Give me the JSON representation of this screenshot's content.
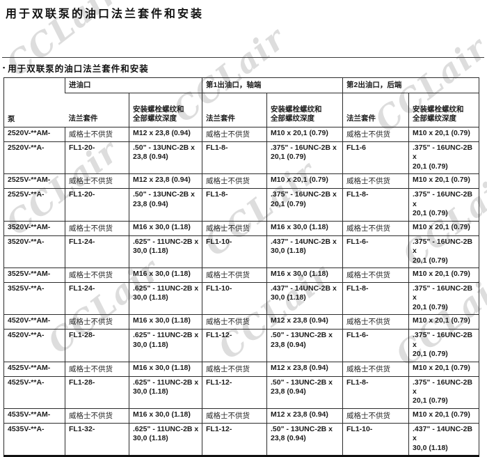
{
  "page": {
    "title": "用于双联泵的油口法兰套件和安装",
    "section_title": "用于双联泵的油口法兰套件和安装",
    "bullet": "▪",
    "watermark_text": "CCLair"
  },
  "table": {
    "pump_column_header": "泵",
    "group_headers": [
      "进油口",
      "第1出油口，轴端",
      "第2出油口，后端"
    ],
    "sub_headers": {
      "flange_kit": "法兰套件",
      "bolt_thread": "安装螺栓螺纹和\n全部螺纹深度"
    },
    "not_supplied_text": "威格士不供货",
    "rows": [
      {
        "pump": "2520V-**AM-",
        "cells": [
          "威格士不供货",
          "M12 x 23,8 (0.94)",
          "威格士不供货",
          "M10 x 20,1 (0.79)",
          "威格士不供货",
          "M10 x 20,1 (0.79)"
        ]
      },
      {
        "pump": "2520V-**A-",
        "cells": [
          "FL1-20-",
          ".50\" - 13UNC-2B x\n23,8 (0.94)",
          "FL1-8-",
          ".375\" - 16UNC-2B x\n20,1 (0.79)",
          "FL1-6",
          ".375\" - 16UNC-2B x\n20,1 (0.79)"
        ]
      },
      {
        "pump": "2525V-**AM-",
        "cells": [
          "威格士不供货",
          "M12 x 23,8 (0.94)",
          "威格士不供货",
          "M10 x 20,1 (0.79)",
          "威格士不供货",
          "M10 x 20,1 (0.79)"
        ]
      },
      {
        "pump": "2525V-**A-",
        "cells": [
          "FL1-20-",
          ".50\" - 13UNC-2B x\n23,8 (0.94)",
          "FL1-8-",
          ".375\" - 16UNC-2B x\n20,1 (0.79)",
          "FL1-8-",
          ".375\" - 16UNC-2B x\n20,1 (0.79)"
        ]
      },
      {
        "pump": "3520V-**AM-",
        "cells": [
          "威格士不供货",
          "M16 x 30,0 (1.18)",
          "威格士不供货",
          "M16 x 30,0 (1.18)",
          "威格士不供货",
          "M10 x 20,1 (0.79)"
        ]
      },
      {
        "pump": "3520V-**A-",
        "cells": [
          "FL1-24-",
          ".625\" - 11UNC-2B x\n30,0 (1.18)",
          "FL1-10-",
          ".437\" - 14UNC-2B x\n30,0 (1.18)",
          "FL1-6-",
          ".375\" - 16UNC-2B x\n20,1 (0.79)"
        ]
      },
      {
        "pump": "3525V-**AM-",
        "cells": [
          "威格士不供货",
          "M16 x 30,0 (1.18)",
          "威格士不供货",
          "M16 x 30,0 (1.18)",
          "威格士不供货",
          "M10 x 20,1 (0.79)"
        ]
      },
      {
        "pump": "3525V-**A-",
        "cells": [
          "FL1-24-",
          ".625\" - 11UNC-2B x\n30,0 (1.18)",
          "FL1-10-",
          ".437\" - 14UNC-2B x\n30,0 (1.18)",
          "FL1-8-",
          ".375\" - 16UNC-2B x\n20,1 (0.79)"
        ]
      },
      {
        "pump": "4520V-**AM-",
        "cells": [
          "威格士不供货",
          "M16 x 30,0 (1.18)",
          "威格士不供货",
          "M12 x 23,8 (0.94)",
          "威格士不供货",
          "M10 x 20,1 (0.79)"
        ]
      },
      {
        "pump": "4520V-**A-",
        "cells": [
          "FL1-28-",
          ".625\" - 11UNC-2B x\n30,0 (1.18)",
          "FL1-12-",
          ".50\" - 13UNC-2B x\n23,8 (0.94)",
          "FL1-6-",
          ".375\" - 16UNC-2B x\n20,1 (0.79)"
        ]
      },
      {
        "pump": "4525V-**AM-",
        "cells": [
          "威格士不供货",
          "M16 x 30,0 (1.18)",
          "威格士不供货",
          "M12 x 23,8 (0.94)",
          "威格士不供货",
          "M10 x 20,1 (0.79)"
        ]
      },
      {
        "pump": "4525V-**A-",
        "cells": [
          "FL1-28-",
          ".625\" - 11UNC-2B x\n30,0 (1.18)",
          "FL1-12-",
          ".50\" - 13UNC-2B x\n23,8 (0.94)",
          "FL1-8-",
          ".375\" - 16UNC-2B x\n20,1 (0.79)"
        ]
      },
      {
        "pump": "4535V-**AM-",
        "cells": [
          "威格士不供货",
          "M16 x 30,0 (1.18)",
          "威格士不供货",
          "M12 x 23,8 (0.94)",
          "威格士不供货",
          "M10 x 20,1 (0.79)"
        ]
      },
      {
        "pump": "4535V-**A-",
        "cells": [
          "FL1-32-",
          ".625\" - 11UNC-2B x\n30,0 (1.18)",
          "FL1-12-",
          ".50\" - 13UNC-2B x\n23,8 (0.94)",
          "FL1-10-",
          ".437\" - 14UNC-2B x\n30,0 (1.18)"
        ]
      }
    ]
  }
}
